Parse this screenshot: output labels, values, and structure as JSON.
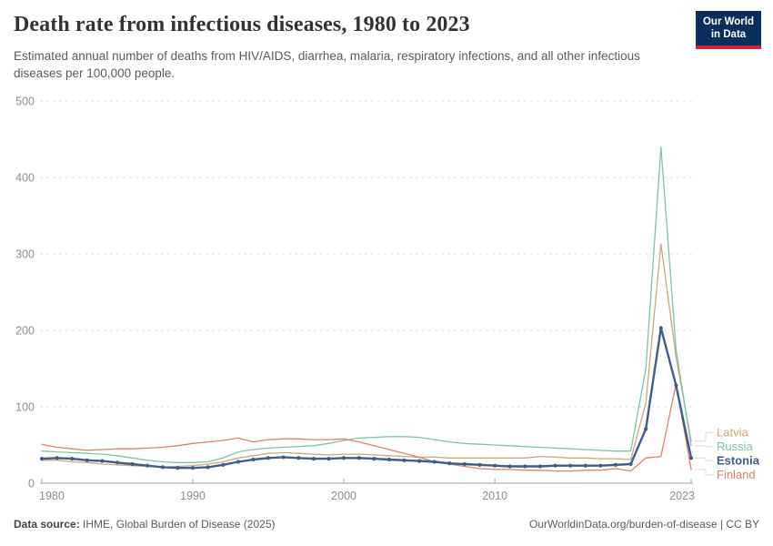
{
  "header": {
    "title": "Death rate from infectious diseases, 1980 to 2023",
    "subtitle": "Estimated annual number of deaths from HIV/AIDS, diarrhea, malaria, respiratory infections, and all other infectious diseases per 100,000 people.",
    "logo": {
      "line1": "Our World",
      "line2": "in Data"
    }
  },
  "chart_data": {
    "type": "line",
    "title": "Death rate from infectious diseases, 1980 to 2023",
    "xlabel": "",
    "ylabel": "",
    "x_range": [
      1980,
      2023
    ],
    "ylim": [
      0,
      500
    ],
    "yticks": [
      0,
      100,
      200,
      300,
      400,
      500
    ],
    "xticks": [
      1980,
      1990,
      2000,
      2010,
      2023
    ],
    "grid": "dashed-horizontal",
    "legend_position": "right-of-line-ends",
    "x": [
      1980,
      1981,
      1982,
      1983,
      1984,
      1985,
      1986,
      1987,
      1988,
      1989,
      1990,
      1991,
      1992,
      1993,
      1994,
      1995,
      1996,
      1997,
      1998,
      1999,
      2000,
      2001,
      2002,
      2003,
      2004,
      2005,
      2006,
      2007,
      2008,
      2009,
      2010,
      2011,
      2012,
      2013,
      2014,
      2015,
      2016,
      2017,
      2018,
      2019,
      2020,
      2021,
      2022,
      2023
    ],
    "series": [
      {
        "name": "Latvia",
        "color": "#c9a87a",
        "focused": false,
        "values": [
          30,
          30,
          28,
          27,
          25,
          24,
          23,
          22,
          21,
          22,
          23,
          25,
          28,
          33,
          36,
          39,
          40,
          39,
          38,
          37,
          38,
          38,
          37,
          36,
          35,
          34,
          34,
          33,
          33,
          33,
          33,
          33,
          33,
          35,
          34,
          33,
          33,
          32,
          32,
          31,
          105,
          313,
          165,
          55
        ]
      },
      {
        "name": "Russia",
        "color": "#7ec4a6",
        "focused": false,
        "values": [
          42,
          41,
          40,
          39,
          38,
          36,
          33,
          30,
          28,
          27,
          27,
          28,
          33,
          41,
          44,
          46,
          47,
          48,
          49,
          52,
          56,
          59,
          60,
          61,
          61,
          60,
          57,
          54,
          52,
          51,
          50,
          49,
          48,
          47,
          46,
          45,
          44,
          43,
          42,
          42,
          150,
          440,
          175,
          49
        ]
      },
      {
        "name": "Estonia",
        "color": "#3e5c8c",
        "focused": true,
        "values": [
          32,
          33,
          32,
          30,
          29,
          27,
          25,
          23,
          21,
          20,
          20,
          21,
          24,
          28,
          31,
          33,
          34,
          33,
          32,
          32,
          33,
          33,
          32,
          31,
          30,
          29,
          28,
          26,
          25,
          24,
          23,
          22,
          22,
          22,
          23,
          23,
          23,
          23,
          24,
          25,
          71,
          203,
          128,
          33
        ]
      },
      {
        "name": "Finland",
        "color": "#df8266",
        "focused": false,
        "values": [
          51,
          47,
          45,
          43,
          44,
          45,
          45,
          46,
          47,
          49,
          52,
          54,
          56,
          59,
          54,
          57,
          58,
          58,
          57,
          57,
          58,
          54,
          49,
          44,
          39,
          34,
          28,
          25,
          22,
          19,
          18,
          18,
          17,
          17,
          16,
          16,
          17,
          17,
          19,
          16,
          33,
          35,
          130,
          18
        ]
      }
    ],
    "axis_color": "#a3a3a3",
    "gridline_color": "#dcdcdc",
    "tick_label_color": "#8e8e8e"
  },
  "footer": {
    "source_label": "Data source:",
    "source_text": "IHME, Global Burden of Disease (2025)",
    "attribution": "OurWorldinData.org/burden-of-disease | CC BY"
  }
}
